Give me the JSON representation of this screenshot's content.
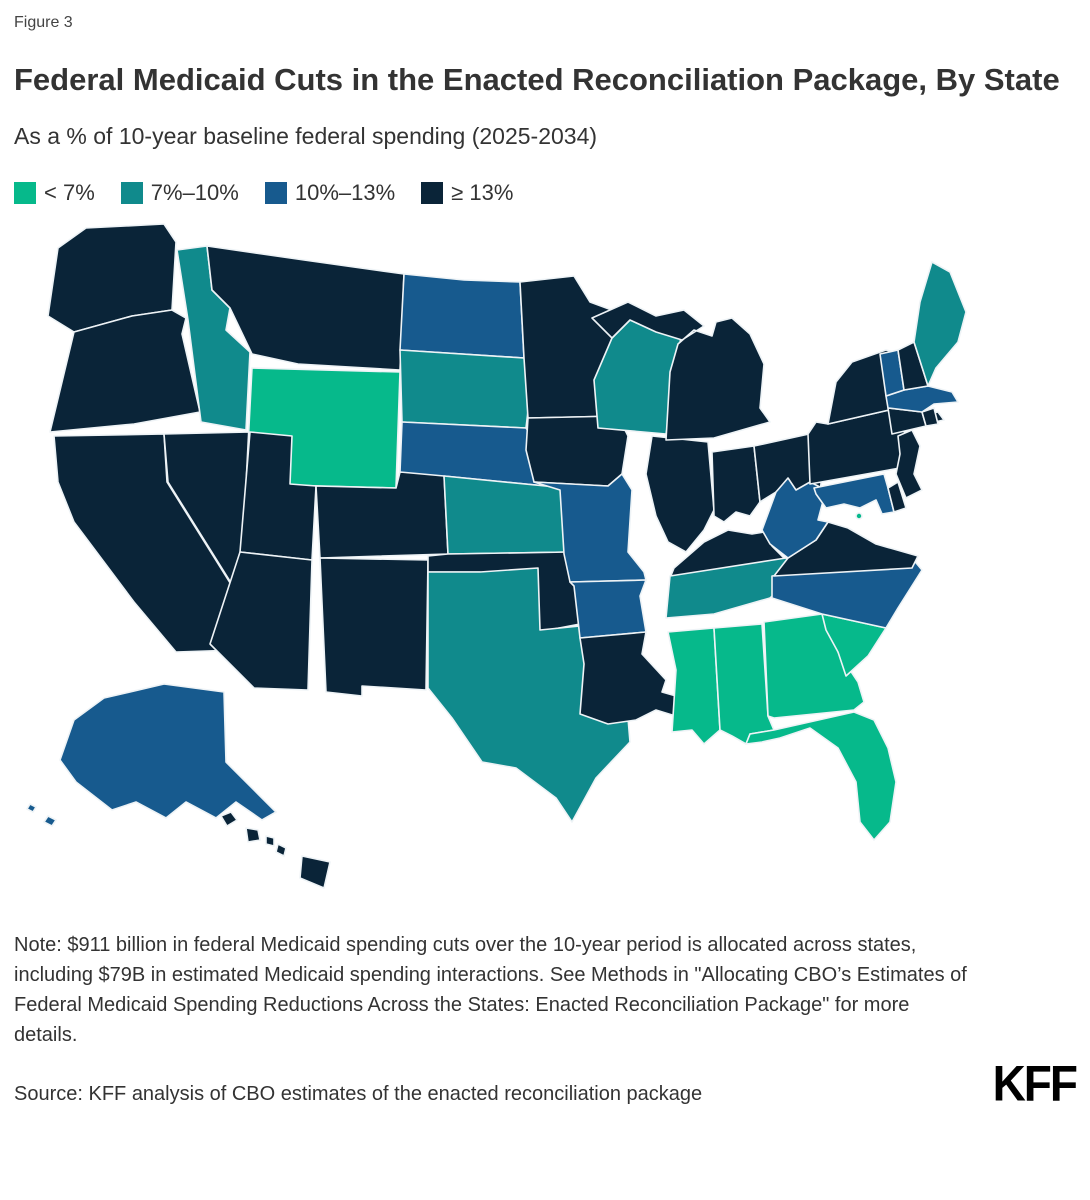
{
  "figure_label": "Figure 3",
  "title": "Federal Medicaid Cuts in the Enacted Reconciliation Package, By State",
  "subtitle": "As a % of 10-year baseline federal spending (2025-2034)",
  "legend": {
    "items": [
      {
        "key": "lt7",
        "label": "< 7%",
        "color": "#06B98B"
      },
      {
        "key": "p7_10",
        "label": "7%–10%",
        "color": "#108A8C"
      },
      {
        "key": "p10_13",
        "label": "10%–13%",
        "color": "#175A8E"
      },
      {
        "key": "gte13",
        "label": "≥ 13%",
        "color": "#0A2438"
      }
    ]
  },
  "map": {
    "border_color": "#eef3f6",
    "background": "#ffffff"
  },
  "chart_data": {
    "type": "choropleth_map",
    "title": "Federal Medicaid Cuts in the Enacted Reconciliation Package, By State",
    "subtitle": "As a % of 10-year baseline federal spending (2025-2034)",
    "legend_position": "top-left",
    "categories": [
      "< 7%",
      "7%–10%",
      "10%–13%",
      "≥ 13%"
    ],
    "states": [
      {
        "abbr": "WA",
        "name": "Washington",
        "category": "gte13"
      },
      {
        "abbr": "OR",
        "name": "Oregon",
        "category": "gte13"
      },
      {
        "abbr": "CA",
        "name": "California",
        "category": "gte13"
      },
      {
        "abbr": "NV",
        "name": "Nevada",
        "category": "gte13"
      },
      {
        "abbr": "ID",
        "name": "Idaho",
        "category": "p7_10"
      },
      {
        "abbr": "MT",
        "name": "Montana",
        "category": "gte13"
      },
      {
        "abbr": "WY",
        "name": "Wyoming",
        "category": "lt7"
      },
      {
        "abbr": "UT",
        "name": "Utah",
        "category": "gte13"
      },
      {
        "abbr": "AZ",
        "name": "Arizona",
        "category": "gte13"
      },
      {
        "abbr": "CO",
        "name": "Colorado",
        "category": "gte13"
      },
      {
        "abbr": "NM",
        "name": "New Mexico",
        "category": "gte13"
      },
      {
        "abbr": "ND",
        "name": "North Dakota",
        "category": "p10_13"
      },
      {
        "abbr": "SD",
        "name": "South Dakota",
        "category": "p7_10"
      },
      {
        "abbr": "NE",
        "name": "Nebraska",
        "category": "p10_13"
      },
      {
        "abbr": "KS",
        "name": "Kansas",
        "category": "p7_10"
      },
      {
        "abbr": "OK",
        "name": "Oklahoma",
        "category": "gte13"
      },
      {
        "abbr": "TX",
        "name": "Texas",
        "category": "p7_10"
      },
      {
        "abbr": "MN",
        "name": "Minnesota",
        "category": "gte13"
      },
      {
        "abbr": "IA",
        "name": "Iowa",
        "category": "gte13"
      },
      {
        "abbr": "MO",
        "name": "Missouri",
        "category": "p10_13"
      },
      {
        "abbr": "AR",
        "name": "Arkansas",
        "category": "p10_13"
      },
      {
        "abbr": "LA",
        "name": "Louisiana",
        "category": "gte13"
      },
      {
        "abbr": "WI",
        "name": "Wisconsin",
        "category": "p7_10"
      },
      {
        "abbr": "IL",
        "name": "Illinois",
        "category": "gte13"
      },
      {
        "abbr": "MI",
        "name": "Michigan",
        "category": "gte13"
      },
      {
        "abbr": "IN",
        "name": "Indiana",
        "category": "gte13"
      },
      {
        "abbr": "OH",
        "name": "Ohio",
        "category": "gte13"
      },
      {
        "abbr": "KY",
        "name": "Kentucky",
        "category": "gte13"
      },
      {
        "abbr": "TN",
        "name": "Tennessee",
        "category": "p7_10"
      },
      {
        "abbr": "MS",
        "name": "Mississippi",
        "category": "lt7"
      },
      {
        "abbr": "AL",
        "name": "Alabama",
        "category": "lt7"
      },
      {
        "abbr": "GA",
        "name": "Georgia",
        "category": "lt7"
      },
      {
        "abbr": "SC",
        "name": "South Carolina",
        "category": "lt7"
      },
      {
        "abbr": "FL",
        "name": "Florida",
        "category": "lt7"
      },
      {
        "abbr": "NC",
        "name": "North Carolina",
        "category": "p10_13"
      },
      {
        "abbr": "VA",
        "name": "Virginia",
        "category": "gte13"
      },
      {
        "abbr": "WV",
        "name": "West Virginia",
        "category": "p10_13"
      },
      {
        "abbr": "MD",
        "name": "Maryland",
        "category": "p10_13"
      },
      {
        "abbr": "DE",
        "name": "Delaware",
        "category": "gte13"
      },
      {
        "abbr": "DC",
        "name": "District of Columbia",
        "category": "lt7"
      },
      {
        "abbr": "PA",
        "name": "Pennsylvania",
        "category": "gte13"
      },
      {
        "abbr": "NJ",
        "name": "New Jersey",
        "category": "gte13"
      },
      {
        "abbr": "NY",
        "name": "New York",
        "category": "gte13"
      },
      {
        "abbr": "CT",
        "name": "Connecticut",
        "category": "gte13"
      },
      {
        "abbr": "RI",
        "name": "Rhode Island",
        "category": "gte13"
      },
      {
        "abbr": "MA",
        "name": "Massachusetts",
        "category": "p10_13"
      },
      {
        "abbr": "VT",
        "name": "Vermont",
        "category": "p10_13"
      },
      {
        "abbr": "NH",
        "name": "New Hampshire",
        "category": "gte13"
      },
      {
        "abbr": "ME",
        "name": "Maine",
        "category": "p7_10"
      },
      {
        "abbr": "AK",
        "name": "Alaska",
        "category": "p10_13"
      },
      {
        "abbr": "HI",
        "name": "Hawaii",
        "category": "gte13"
      }
    ]
  },
  "note": "Note: $911 billion in federal Medicaid spending cuts over the 10-year period is allocated across states, including $79B in estimated Medicaid spending interactions. See Methods in \"Allocating CBO’s Estimates of Federal Medicaid Spending Reductions Across the States: Enacted Reconciliation Package\" for more details.",
  "source": "Source: KFF analysis of CBO estimates of the enacted reconciliation package",
  "logo_text": "KFF"
}
